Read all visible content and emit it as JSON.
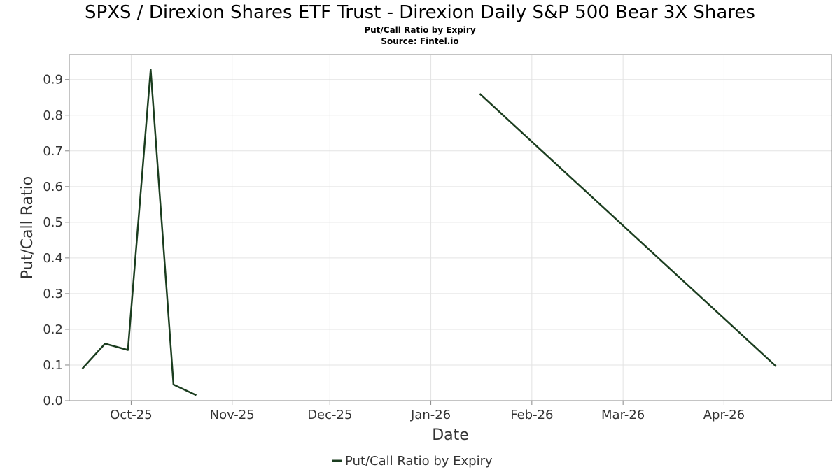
{
  "chart_data": {
    "type": "line",
    "title": "SPXS / Direxion Shares ETF Trust - Direxion Daily S&P 500 Bear 3X Shares",
    "subtitle": "Put/Call Ratio by Expiry",
    "source": "Source: Fintel.io",
    "xlabel": "Date",
    "ylabel": "Put/Call Ratio",
    "ylim": [
      0,
      0.97
    ],
    "yticks": [
      0.0,
      0.1,
      0.2,
      0.3,
      0.4,
      0.5,
      0.6,
      0.7,
      0.8,
      0.9
    ],
    "yticks_labels": [
      "0.0",
      "0.1",
      "0.2",
      "0.3",
      "0.4",
      "0.5",
      "0.6",
      "0.7",
      "0.8",
      "0.9"
    ],
    "xlim": [
      "2025-09-12",
      "2026-05-04"
    ],
    "xticks": [
      {
        "date": "2025-10-01",
        "label": "Oct-25"
      },
      {
        "date": "2025-11-01",
        "label": "Nov-25"
      },
      {
        "date": "2025-12-01",
        "label": "Dec-25"
      },
      {
        "date": "2026-01-01",
        "label": "Jan-26"
      },
      {
        "date": "2026-02-01",
        "label": "Feb-26"
      },
      {
        "date": "2026-03-01",
        "label": "Mar-26"
      },
      {
        "date": "2026-04-01",
        "label": "Apr-26"
      }
    ],
    "grid": true,
    "legend_position": "bottom-center",
    "series": [
      {
        "name": "Put/Call Ratio by Expiry",
        "color": "#1b3d1f",
        "segments": [
          [
            {
              "x": "2025-09-16",
              "y": 0.09
            },
            {
              "x": "2025-09-23",
              "y": 0.16
            },
            {
              "x": "2025-09-30",
              "y": 0.142
            },
            {
              "x": "2025-10-07",
              "y": 0.928
            },
            {
              "x": "2025-10-14",
              "y": 0.045
            },
            {
              "x": "2025-10-21",
              "y": 0.015
            }
          ],
          [
            {
              "x": "2026-01-16",
              "y": 0.86
            },
            {
              "x": "2026-04-17",
              "y": 0.096
            }
          ]
        ]
      }
    ]
  }
}
